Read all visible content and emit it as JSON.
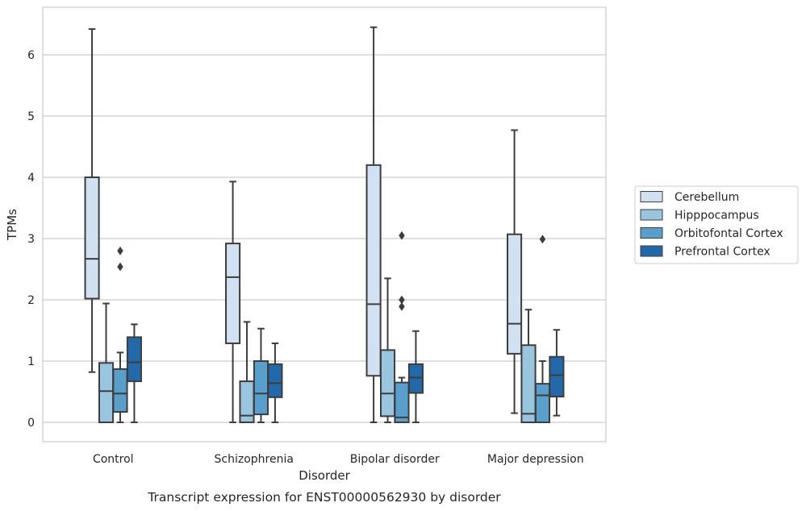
{
  "chart_data": {
    "type": "box",
    "caption": "Transcript expression for ENST00000562930 by disorder",
    "xlabel": "Disorder",
    "ylabel": "TPMs",
    "ylim": [
      -0.32,
      6.78
    ],
    "yticks": [
      0,
      1,
      2,
      3,
      4,
      5,
      6
    ],
    "grid": "horizontal",
    "legend_position": "right",
    "categories": [
      "Control",
      "Schizophrenia",
      "Bipolar disorder",
      "Major depression"
    ],
    "series": [
      {
        "name": "Cerebellum",
        "color": "#d2e1f2",
        "boxes": [
          {
            "whislo": 0.82,
            "q1": 2.02,
            "med": 2.67,
            "q3": 4.0,
            "whishi": 6.42,
            "fliers": []
          },
          {
            "whislo": 0.0,
            "q1": 1.29,
            "med": 2.37,
            "q3": 2.92,
            "whishi": 3.93,
            "fliers": []
          },
          {
            "whislo": 0.0,
            "q1": 0.76,
            "med": 1.93,
            "q3": 4.2,
            "whishi": 6.45,
            "fliers": []
          },
          {
            "whislo": 0.15,
            "q1": 1.12,
            "med": 1.61,
            "q3": 3.07,
            "whishi": 4.77,
            "fliers": []
          }
        ]
      },
      {
        "name": "Hipppocampus",
        "color": "#9ac5df",
        "boxes": [
          {
            "whislo": 0.0,
            "q1": 0.0,
            "med": 0.51,
            "q3": 0.97,
            "whishi": 1.94,
            "fliers": []
          },
          {
            "whislo": 0.0,
            "q1": 0.0,
            "med": 0.11,
            "q3": 0.67,
            "whishi": 1.64,
            "fliers": []
          },
          {
            "whislo": 0.0,
            "q1": 0.1,
            "med": 0.47,
            "q3": 1.18,
            "whishi": 2.35,
            "fliers": []
          },
          {
            "whislo": 0.0,
            "q1": 0.0,
            "med": 0.14,
            "q3": 1.26,
            "whishi": 1.84,
            "fliers": []
          }
        ]
      },
      {
        "name": "Orbitofontal Cortex",
        "color": "#5a9fcc",
        "boxes": [
          {
            "whislo": 0.0,
            "q1": 0.17,
            "med": 0.47,
            "q3": 0.87,
            "whishi": 1.14,
            "fliers": [
              2.54,
              2.8
            ]
          },
          {
            "whislo": 0.0,
            "q1": 0.13,
            "med": 0.47,
            "q3": 1.0,
            "whishi": 1.53,
            "fliers": []
          },
          {
            "whislo": 0.0,
            "q1": 0.0,
            "med": 0.08,
            "q3": 0.65,
            "whishi": 0.73,
            "fliers": [
              1.89,
              2.0,
              3.05
            ]
          },
          {
            "whislo": 0.0,
            "q1": 0.0,
            "med": 0.44,
            "q3": 0.63,
            "whishi": 1.0,
            "fliers": [
              2.99
            ]
          }
        ]
      },
      {
        "name": "Prefrontal Cortex",
        "color": "#2369aa",
        "boxes": [
          {
            "whislo": 0.0,
            "q1": 0.67,
            "med": 0.98,
            "q3": 1.39,
            "whishi": 1.6,
            "fliers": []
          },
          {
            "whislo": 0.0,
            "q1": 0.41,
            "med": 0.64,
            "q3": 0.95,
            "whishi": 1.29,
            "fliers": []
          },
          {
            "whislo": 0.0,
            "q1": 0.48,
            "med": 0.73,
            "q3": 0.95,
            "whishi": 1.49,
            "fliers": []
          },
          {
            "whislo": 0.11,
            "q1": 0.42,
            "med": 0.77,
            "q3": 1.07,
            "whishi": 1.51,
            "fliers": []
          }
        ]
      }
    ]
  }
}
